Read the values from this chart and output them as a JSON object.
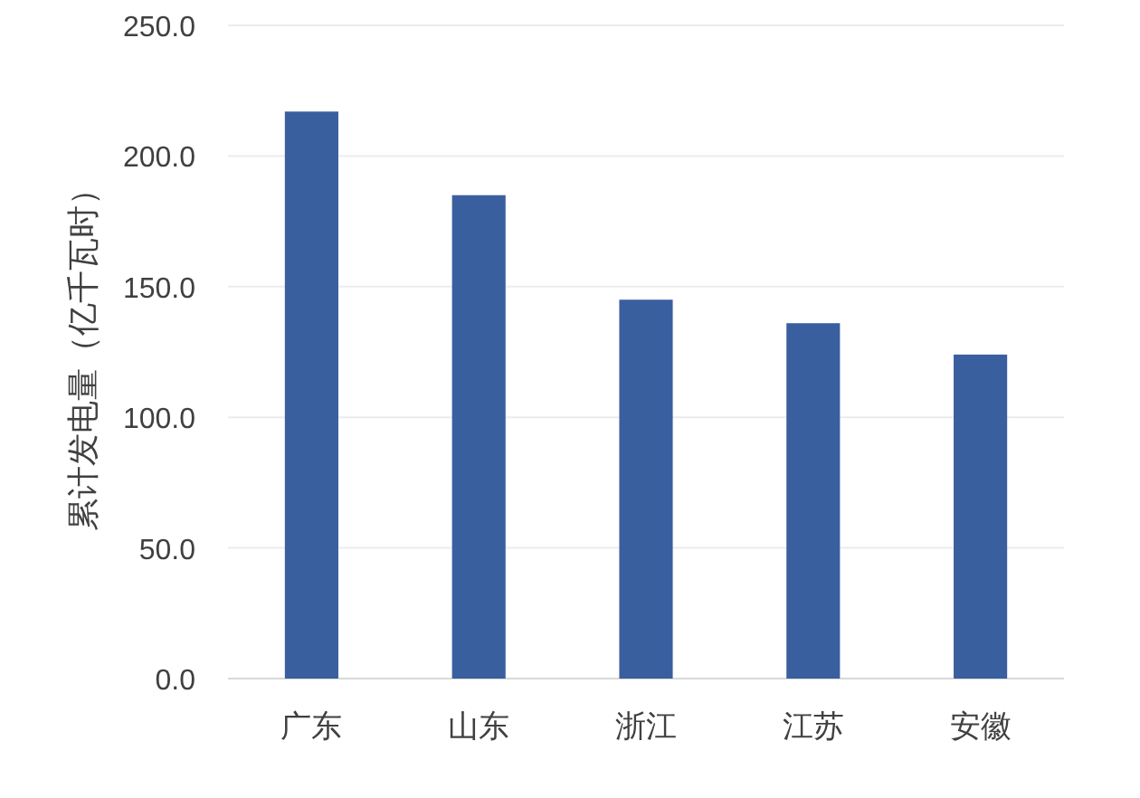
{
  "chart_data": {
    "type": "bar",
    "categories": [
      "广东",
      "山东",
      "浙江",
      "江苏",
      "安徽"
    ],
    "values": [
      217,
      185,
      145,
      136,
      124
    ],
    "color": "#3a5f9f",
    "ylabel": "累计发电量（亿千瓦时）",
    "ylim": [
      0,
      250
    ],
    "yticks": [
      {
        "value": 0,
        "label": "0.0"
      },
      {
        "value": 50,
        "label": "50.0"
      },
      {
        "value": 100,
        "label": "100.0"
      },
      {
        "value": 150,
        "label": "150.0"
      },
      {
        "value": 200,
        "label": "200.0"
      },
      {
        "value": 250,
        "label": "250.0"
      }
    ],
    "grid": "y"
  }
}
